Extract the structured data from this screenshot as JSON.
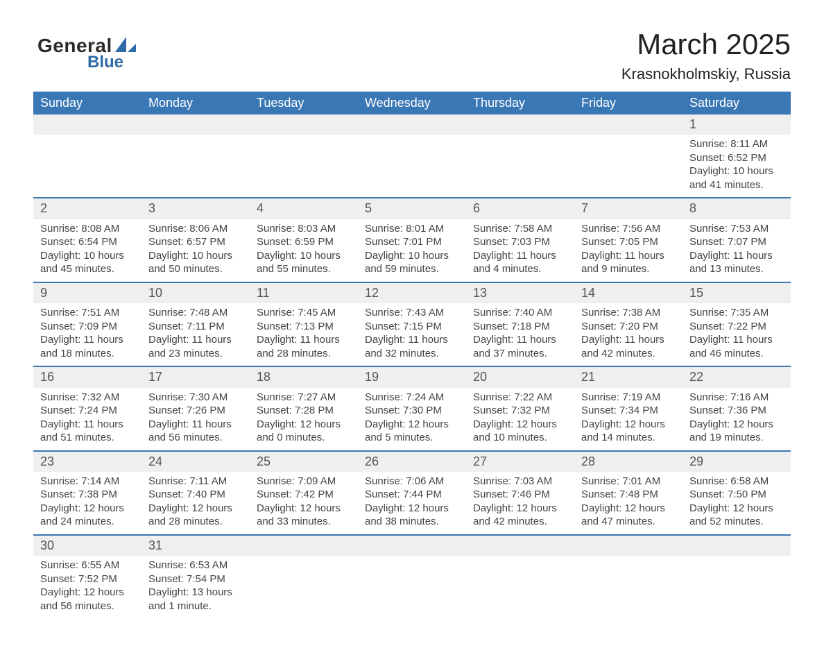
{
  "logo": {
    "text_general": "General",
    "text_blue": "Blue",
    "general_color": "#2b2b2b",
    "blue_color": "#2f6aa8",
    "shape_color": "#2f6aa8"
  },
  "header": {
    "title": "March 2025",
    "subtitle": "Krasnokholmskiy, Russia",
    "title_fontsize": 42,
    "subtitle_fontsize": 22
  },
  "calendar": {
    "type": "table",
    "header_bg": "#3a77b5",
    "header_text_color": "#ffffff",
    "daynum_bg": "#efefef",
    "row_divider_color": "#3a77b5",
    "body_text_color": "#444444",
    "background_color": "#ffffff",
    "font_family": "Arial",
    "columns": [
      "Sunday",
      "Monday",
      "Tuesday",
      "Wednesday",
      "Thursday",
      "Friday",
      "Saturday"
    ],
    "weeks": [
      {
        "daynums": [
          "",
          "",
          "",
          "",
          "",
          "",
          "1"
        ],
        "details": [
          "",
          "",
          "",
          "",
          "",
          "",
          "Sunrise: 8:11 AM\nSunset: 6:52 PM\nDaylight: 10 hours and 41 minutes."
        ]
      },
      {
        "daynums": [
          "2",
          "3",
          "4",
          "5",
          "6",
          "7",
          "8"
        ],
        "details": [
          "Sunrise: 8:08 AM\nSunset: 6:54 PM\nDaylight: 10 hours and 45 minutes.",
          "Sunrise: 8:06 AM\nSunset: 6:57 PM\nDaylight: 10 hours and 50 minutes.",
          "Sunrise: 8:03 AM\nSunset: 6:59 PM\nDaylight: 10 hours and 55 minutes.",
          "Sunrise: 8:01 AM\nSunset: 7:01 PM\nDaylight: 10 hours and 59 minutes.",
          "Sunrise: 7:58 AM\nSunset: 7:03 PM\nDaylight: 11 hours and 4 minutes.",
          "Sunrise: 7:56 AM\nSunset: 7:05 PM\nDaylight: 11 hours and 9 minutes.",
          "Sunrise: 7:53 AM\nSunset: 7:07 PM\nDaylight: 11 hours and 13 minutes."
        ]
      },
      {
        "daynums": [
          "9",
          "10",
          "11",
          "12",
          "13",
          "14",
          "15"
        ],
        "details": [
          "Sunrise: 7:51 AM\nSunset: 7:09 PM\nDaylight: 11 hours and 18 minutes.",
          "Sunrise: 7:48 AM\nSunset: 7:11 PM\nDaylight: 11 hours and 23 minutes.",
          "Sunrise: 7:45 AM\nSunset: 7:13 PM\nDaylight: 11 hours and 28 minutes.",
          "Sunrise: 7:43 AM\nSunset: 7:15 PM\nDaylight: 11 hours and 32 minutes.",
          "Sunrise: 7:40 AM\nSunset: 7:18 PM\nDaylight: 11 hours and 37 minutes.",
          "Sunrise: 7:38 AM\nSunset: 7:20 PM\nDaylight: 11 hours and 42 minutes.",
          "Sunrise: 7:35 AM\nSunset: 7:22 PM\nDaylight: 11 hours and 46 minutes."
        ]
      },
      {
        "daynums": [
          "16",
          "17",
          "18",
          "19",
          "20",
          "21",
          "22"
        ],
        "details": [
          "Sunrise: 7:32 AM\nSunset: 7:24 PM\nDaylight: 11 hours and 51 minutes.",
          "Sunrise: 7:30 AM\nSunset: 7:26 PM\nDaylight: 11 hours and 56 minutes.",
          "Sunrise: 7:27 AM\nSunset: 7:28 PM\nDaylight: 12 hours and 0 minutes.",
          "Sunrise: 7:24 AM\nSunset: 7:30 PM\nDaylight: 12 hours and 5 minutes.",
          "Sunrise: 7:22 AM\nSunset: 7:32 PM\nDaylight: 12 hours and 10 minutes.",
          "Sunrise: 7:19 AM\nSunset: 7:34 PM\nDaylight: 12 hours and 14 minutes.",
          "Sunrise: 7:16 AM\nSunset: 7:36 PM\nDaylight: 12 hours and 19 minutes."
        ]
      },
      {
        "daynums": [
          "23",
          "24",
          "25",
          "26",
          "27",
          "28",
          "29"
        ],
        "details": [
          "Sunrise: 7:14 AM\nSunset: 7:38 PM\nDaylight: 12 hours and 24 minutes.",
          "Sunrise: 7:11 AM\nSunset: 7:40 PM\nDaylight: 12 hours and 28 minutes.",
          "Sunrise: 7:09 AM\nSunset: 7:42 PM\nDaylight: 12 hours and 33 minutes.",
          "Sunrise: 7:06 AM\nSunset: 7:44 PM\nDaylight: 12 hours and 38 minutes.",
          "Sunrise: 7:03 AM\nSunset: 7:46 PM\nDaylight: 12 hours and 42 minutes.",
          "Sunrise: 7:01 AM\nSunset: 7:48 PM\nDaylight: 12 hours and 47 minutes.",
          "Sunrise: 6:58 AM\nSunset: 7:50 PM\nDaylight: 12 hours and 52 minutes."
        ]
      },
      {
        "daynums": [
          "30",
          "31",
          "",
          "",
          "",
          "",
          ""
        ],
        "details": [
          "Sunrise: 6:55 AM\nSunset: 7:52 PM\nDaylight: 12 hours and 56 minutes.",
          "Sunrise: 6:53 AM\nSunset: 7:54 PM\nDaylight: 13 hours and 1 minute.",
          "",
          "",
          "",
          "",
          ""
        ]
      }
    ]
  }
}
